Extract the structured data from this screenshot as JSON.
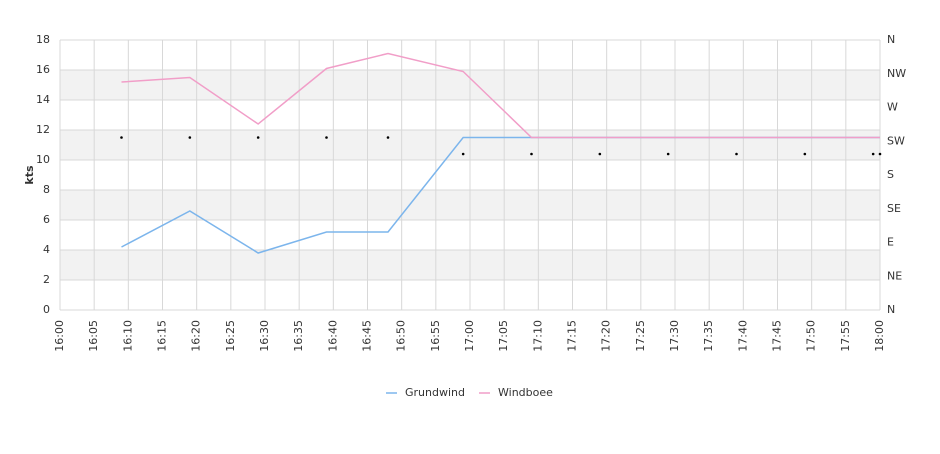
{
  "chart_data": {
    "type": "line",
    "y_label": "kts",
    "x": [
      "16:09",
      "16:19",
      "16:29",
      "16:39",
      "16:48",
      "16:59",
      "17:09",
      "17:19",
      "17:29",
      "17:39",
      "17:49",
      "17:59",
      "18:00"
    ],
    "xlim": [
      "16:00",
      "18:00"
    ],
    "xticks": [
      "16:00",
      "16:05",
      "16:10",
      "16:15",
      "16:20",
      "16:25",
      "16:30",
      "16:35",
      "16:40",
      "16:45",
      "16:50",
      "16:55",
      "17:00",
      "17:05",
      "17:10",
      "17:15",
      "17:20",
      "17:25",
      "17:30",
      "17:35",
      "17:40",
      "17:45",
      "17:50",
      "17:55",
      "18:00"
    ],
    "ylim": [
      0,
      18
    ],
    "yticks": [
      0,
      2,
      4,
      6,
      8,
      10,
      12,
      14,
      16,
      18
    ],
    "y2lim": [
      0,
      360
    ],
    "y2ticks": [
      {
        "value": 0,
        "label": "N"
      },
      {
        "value": 45,
        "label": "NE"
      },
      {
        "value": 90,
        "label": "E"
      },
      {
        "value": 135,
        "label": "SE"
      },
      {
        "value": 180,
        "label": "S"
      },
      {
        "value": 225,
        "label": "SW"
      },
      {
        "value": 270,
        "label": "W"
      },
      {
        "value": 315,
        "label": "NW"
      },
      {
        "value": 360,
        "label": "N"
      }
    ],
    "grid": true,
    "series": [
      {
        "name": "Grundwind",
        "color": "#7cb5ec",
        "values": [
          4.2,
          6.6,
          3.8,
          5.2,
          5.2,
          11.5,
          11.5,
          11.5,
          11.5,
          11.5,
          11.5,
          11.5,
          11.5
        ]
      },
      {
        "name": "Windboee",
        "color": "#f19ec8",
        "values": [
          15.2,
          15.5,
          12.4,
          16.1,
          17.1,
          15.9,
          11.5,
          11.5,
          11.5,
          11.5,
          11.5,
          11.5,
          11.5
        ]
      }
    ],
    "direction": {
      "axis": "y2",
      "color": "#000000",
      "values": [
        230,
        230,
        230,
        230,
        230,
        208,
        208,
        208,
        208,
        208,
        208,
        208,
        208
      ]
    }
  }
}
